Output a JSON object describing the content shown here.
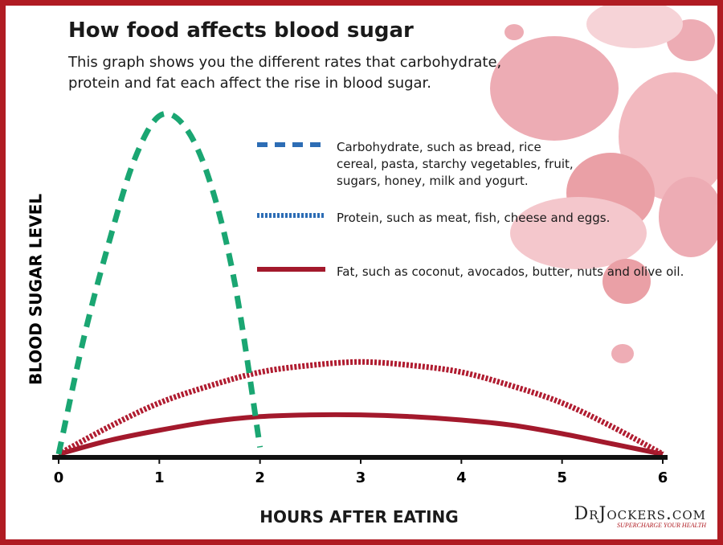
{
  "chart_data": {
    "type": "line",
    "title": "How food affects blood sugar",
    "subtitle": "This graph shows you the different rates that carbohydrate, protein and fat each affect the rise in blood sugar.",
    "x_label": "HOURS AFTER EATING",
    "y_label": "BLOOD SUGAR LEVEL",
    "xlim": [
      0,
      6
    ],
    "xticks": [
      0,
      1,
      2,
      3,
      4,
      5,
      6
    ],
    "ylim": [
      0,
      100
    ],
    "series": [
      {
        "name": "Carbohydrate, such as bread, rice cereal, pasta, starchy vegetables, fruit, sugars, honey, milk and yogurt.",
        "color": "#1aa672",
        "legend_color": "#2d6db5",
        "style": "dashed",
        "x": [
          0,
          0.25,
          0.5,
          0.75,
          1,
          1.25,
          1.5,
          1.75,
          2
        ],
        "values": [
          0,
          34,
          62,
          86,
          99,
          96,
          80,
          50,
          2
        ]
      },
      {
        "name": "Protein, such as meat, fish, cheese and eggs.",
        "color": "#b01c30",
        "legend_color": "#2d6db5",
        "style": "dotted",
        "x": [
          0,
          0.5,
          1,
          1.5,
          2,
          2.5,
          3,
          3.5,
          4,
          4.5,
          5,
          5.5,
          6
        ],
        "values": [
          0,
          8,
          15,
          20,
          24,
          26,
          27,
          26,
          24,
          20,
          15,
          8,
          0
        ]
      },
      {
        "name": "Fat, such as coconut, avocados, butter, nuts and olive oil.",
        "color": "#a3192c",
        "legend_color": "#a3192c",
        "style": "solid",
        "x": [
          0,
          0.5,
          1,
          1.5,
          2,
          2.5,
          3,
          3.5,
          4,
          4.5,
          5,
          5.5,
          6
        ],
        "values": [
          0,
          4,
          7,
          9.5,
          11,
          11.5,
          11.5,
          11,
          10,
          8.5,
          6,
          3,
          0
        ]
      }
    ]
  },
  "brand": {
    "name": "DrJockers.com",
    "tagline": "SUPERCHARGE YOUR HEALTH"
  }
}
